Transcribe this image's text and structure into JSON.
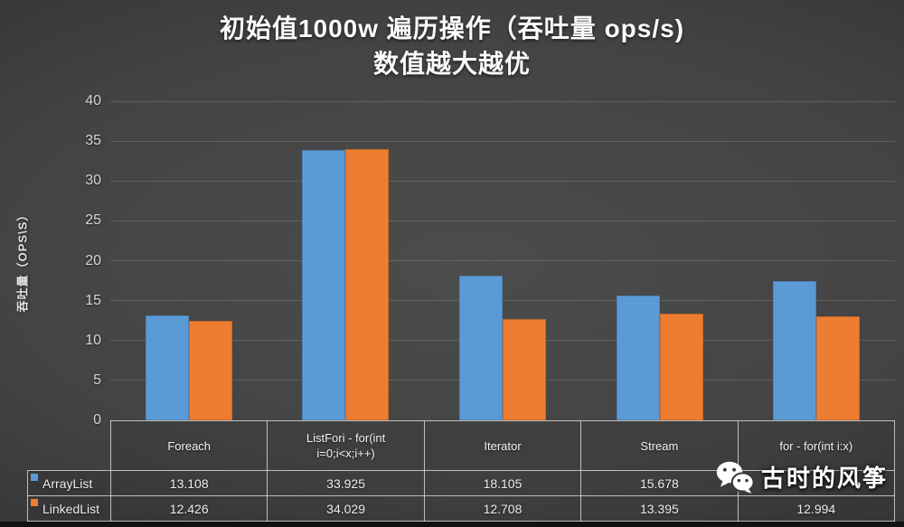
{
  "title": {
    "line1": "初始值1000w 遍历操作（吞吐量 ops/s)",
    "line2": "数值越大越优"
  },
  "chart_data": {
    "type": "bar",
    "title": "初始值1000w 遍历操作（吞吐量 ops/s) 数值越大越优",
    "xlabel": "",
    "ylabel": "吞吐量（OPS\\S）",
    "ylim": [
      0,
      40
    ],
    "yticks": [
      0,
      5,
      10,
      15,
      20,
      25,
      30,
      35,
      40
    ],
    "grid": true,
    "legend_position": "table-left",
    "categories": [
      "Foreach",
      "ListFori - for(int i=0;i<x;i++)",
      "Iterator",
      "Stream",
      "for - for(int i:x)"
    ],
    "category_header_lines": [
      [
        "Foreach"
      ],
      [
        "ListFori - for(int",
        "i=0;i<x;i++)"
      ],
      [
        "Iterator"
      ],
      [
        "Stream"
      ],
      [
        "for - for(int i:x)"
      ]
    ],
    "series": [
      {
        "name": "ArrayList",
        "color": "#5b9bd5",
        "values": [
          13.108,
          33.925,
          18.105,
          15.678,
          17.4
        ],
        "table_cells": [
          "13.108",
          "33.925",
          "18.105",
          "15.678",
          ""
        ]
      },
      {
        "name": "LinkedList",
        "color": "#ed7d31",
        "values": [
          12.426,
          34.029,
          12.708,
          13.395,
          12.994
        ],
        "table_cells": [
          "12.426",
          "34.029",
          "12.708",
          "13.395",
          "12.994"
        ]
      }
    ]
  },
  "watermark": {
    "text": "古时的风筝",
    "icon": "wechat-icon"
  },
  "colors": {
    "background_center": "#4a4a4a",
    "background_edge": "#262626",
    "bar_arraylist": "#5b9bd5",
    "bar_linkedlist": "#ed7d31",
    "gridline": "rgba(255,255,255,0.14)",
    "table_border": "rgba(226,226,226,0.78)",
    "text": "#f0f0f0"
  }
}
